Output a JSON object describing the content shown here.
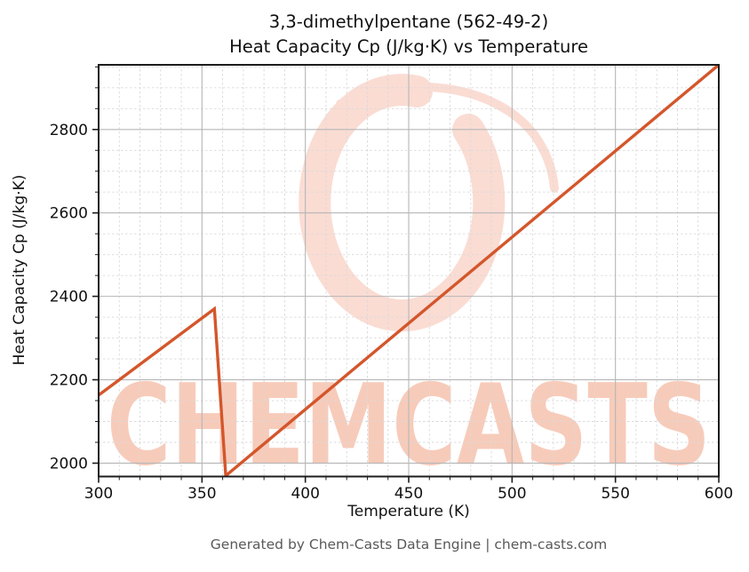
{
  "watermark": {
    "text": "CHEMCASTS",
    "text_color": "#f7cbba",
    "logo_color": "#fadcd3"
  },
  "footer": {
    "credit": "Generated by Chem-Casts Data Engine | chem-casts.com"
  },
  "chart_data": {
    "type": "line",
    "title_lines": [
      "3,3-dimethylpentane (562-49-2)",
      "Heat Capacity Cp (J/kg·K) vs Temperature"
    ],
    "xlabel": "Temperature (K)",
    "ylabel": "Heat Capacity Cp (J/kg·K)",
    "xlim": [
      300,
      600
    ],
    "ylim": [
      1968,
      2955
    ],
    "x_ticks": [
      300,
      350,
      400,
      450,
      500,
      550,
      600
    ],
    "y_ticks": [
      2000,
      2200,
      2400,
      2600,
      2800
    ],
    "x_minor_step": 10,
    "y_minor_step": 50,
    "grid": "major solid, minor dashed",
    "legend": "none",
    "series": [
      {
        "name": "Heat Capacity Cp",
        "color": "#d4562b",
        "points": [
          [
            300,
            2163
          ],
          [
            356,
            2370
          ],
          [
            361.5,
            1970
          ],
          [
            600,
            2955
          ]
        ]
      }
    ],
    "colors": {
      "major_grid": "#b6b6b6",
      "minor_grid": "#d9d9d9",
      "spine": "#1c1c1c",
      "tick_label": "#111111"
    }
  }
}
